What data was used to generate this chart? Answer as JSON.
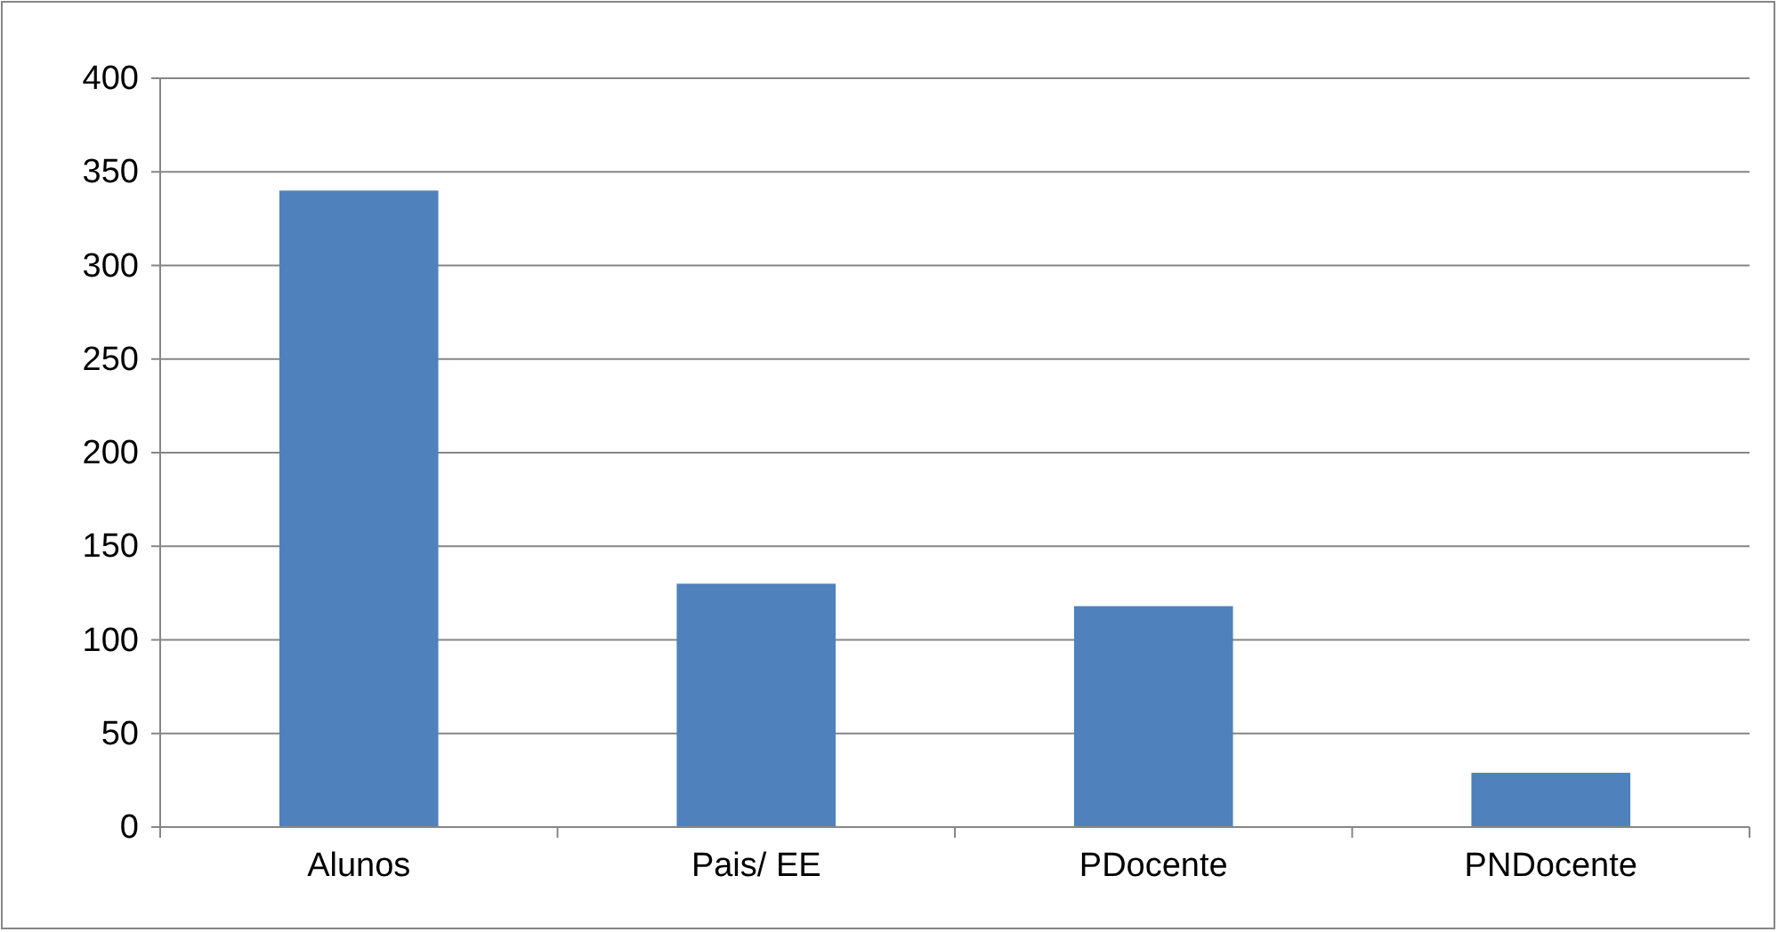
{
  "chart_data": {
    "type": "bar",
    "categories": [
      "Alunos",
      "Pais/ EE",
      "PDocente",
      "PNDocente"
    ],
    "values": [
      340,
      130,
      118,
      29
    ],
    "color": "#4f81bd",
    "ylim": [
      0,
      400
    ],
    "yticks": [
      0,
      50,
      100,
      150,
      200,
      250,
      300,
      350,
      400
    ],
    "grid": "y"
  }
}
